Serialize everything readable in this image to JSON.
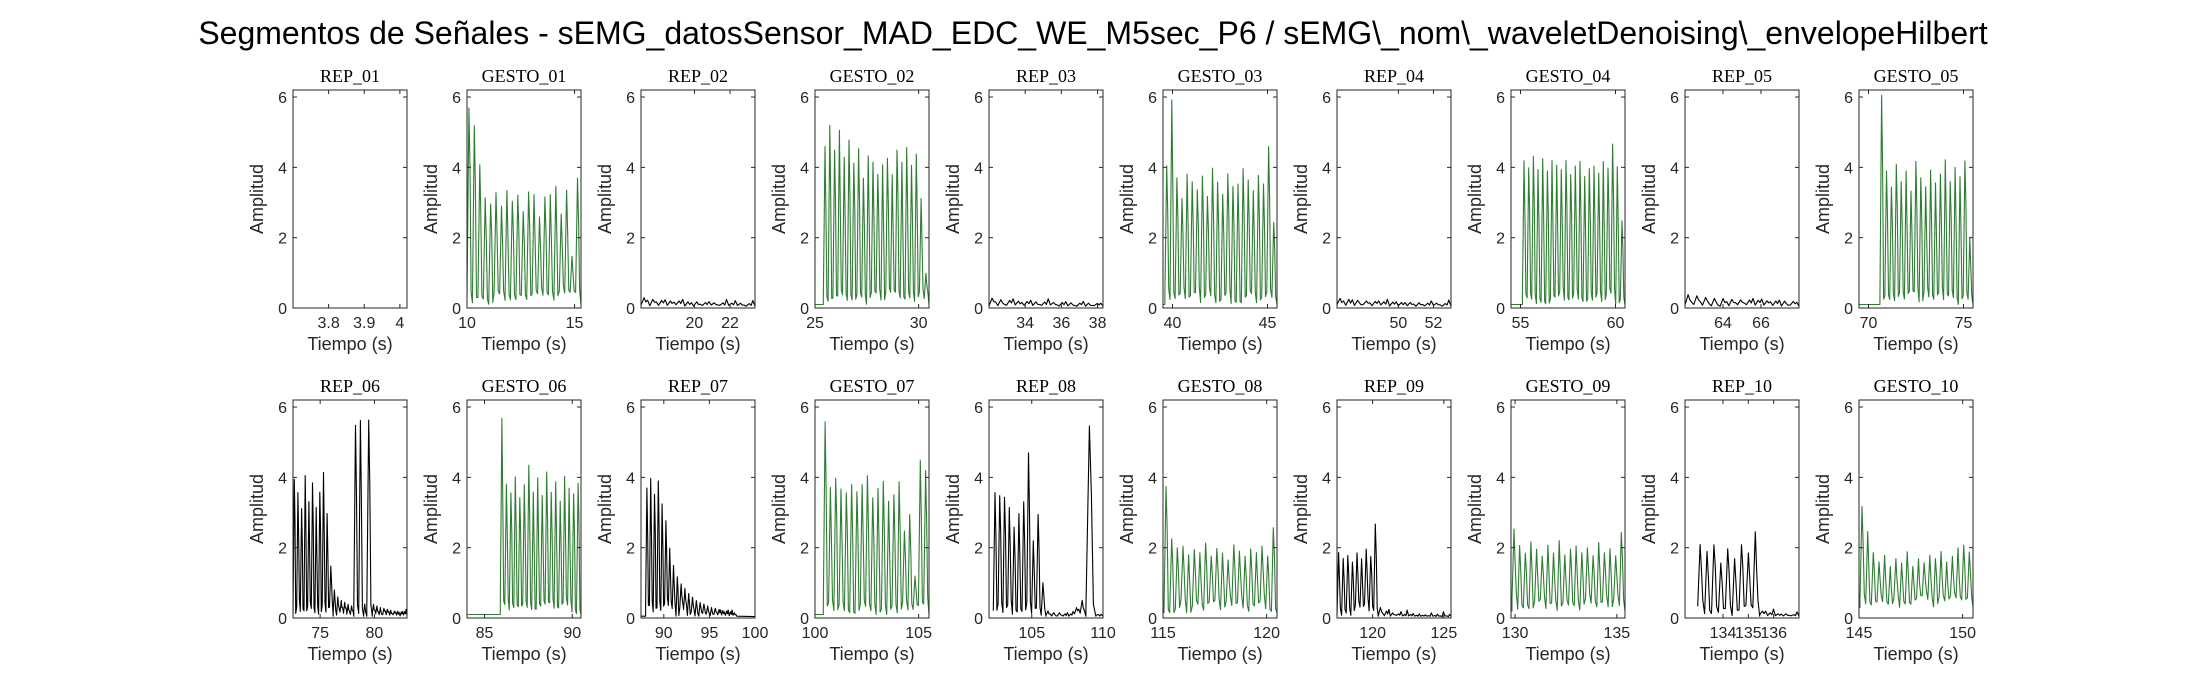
{
  "figure": {
    "title": "Segmentos de Señales - sEMG_datosSensor_MAD_EDC_WE_M5sec_P6 / sEMG\\_nom\\_waveletDenoising\\_envelopeHilbert",
    "xlabel": "Tiempo (s)",
    "ylabel": "Amplitud"
  },
  "colors": {
    "rep": "#000000",
    "gesto": "#2e7d32",
    "axis": "#262626"
  },
  "chart_data": [
    {
      "type": "line",
      "title": "REP_01",
      "color": "#000000",
      "xlim": [
        3.7,
        4.02
      ],
      "ylim": [
        0,
        6.2
      ],
      "xticks": [
        3.8,
        3.9,
        4
      ],
      "xtick_labels": [
        "3.8",
        "3.9",
        "4"
      ],
      "yticks": [
        0,
        2,
        4,
        6
      ],
      "series": [
        {
          "x": [],
          "y": []
        }
      ]
    },
    {
      "type": "line",
      "title": "GESTO_01",
      "color": "#2e7d32",
      "xlim": [
        10,
        15.3
      ],
      "ylim": [
        0,
        6.2
      ],
      "xticks": [
        10,
        15
      ],
      "xtick_labels": [
        "10",
        "15"
      ],
      "yticks": [
        0,
        2,
        4,
        6
      ],
      "pattern": {
        "shape": "burst",
        "start": 10,
        "end": 15.3,
        "base": 0.1,
        "peaks": [
          5.8,
          5.2,
          4.1,
          3.2,
          3.0,
          3.3,
          2.9,
          3.4,
          3.1,
          3.3,
          2.8,
          3.4,
          3.3,
          2.6,
          3.2,
          3.3,
          3.5,
          2.7,
          3.4,
          1.5,
          3.7
        ],
        "seed": 1
      }
    },
    {
      "type": "line",
      "title": "REP_02",
      "color": "#000000",
      "xlim": [
        17,
        23.4
      ],
      "ylim": [
        0,
        6.2
      ],
      "xticks": [
        20,
        22
      ],
      "xtick_labels": [
        "20",
        "22"
      ],
      "yticks": [
        0,
        2,
        4,
        6
      ],
      "pattern": {
        "shape": "ripple",
        "start": 17,
        "end": 23.4,
        "base": 0.05,
        "peaks": [
          0.3,
          0.25,
          0.22,
          0.2,
          0.2,
          0.18,
          0.18,
          0.16,
          0.15,
          0.15,
          0.14,
          0.14,
          0.13
        ],
        "seed": 2
      }
    },
    {
      "type": "line",
      "title": "GESTO_02",
      "color": "#2e7d32",
      "xlim": [
        25,
        30.5
      ],
      "ylim": [
        0,
        6.2
      ],
      "xticks": [
        25,
        30
      ],
      "xtick_labels": [
        "25",
        "30"
      ],
      "yticks": [
        0,
        2,
        4,
        6
      ],
      "pattern": {
        "shape": "burst",
        "start": 25.4,
        "end": 30.5,
        "base": 0.1,
        "peaks": [
          4.6,
          5.2,
          4.5,
          5.1,
          4.3,
          4.8,
          4.2,
          4.6,
          3.8,
          4.4,
          4.2,
          3.9,
          4.1,
          4.3,
          3.8,
          4.5,
          4.2,
          4.7,
          4.1,
          4.4,
          3.2,
          1.0
        ],
        "seed": 3
      }
    },
    {
      "type": "line",
      "title": "REP_03",
      "color": "#000000",
      "xlim": [
        32,
        38.3
      ],
      "ylim": [
        0,
        6.2
      ],
      "xticks": [
        34,
        36,
        38
      ],
      "xtick_labels": [
        "34",
        "36",
        "38"
      ],
      "yticks": [
        0,
        2,
        4,
        6
      ],
      "pattern": {
        "shape": "ripple",
        "start": 32,
        "end": 38.3,
        "base": 0.05,
        "peaks": [
          0.28,
          0.24,
          0.22,
          0.2,
          0.19,
          0.18,
          0.17,
          0.16,
          0.16,
          0.15,
          0.14,
          0.14,
          0.13
        ],
        "seed": 4
      }
    },
    {
      "type": "line",
      "title": "GESTO_03",
      "color": "#2e7d32",
      "xlim": [
        39.5,
        45.5
      ],
      "ylim": [
        0,
        6.2
      ],
      "xticks": [
        40,
        45
      ],
      "xtick_labels": [
        "40",
        "45"
      ],
      "yticks": [
        0,
        2,
        4,
        6
      ],
      "pattern": {
        "shape": "burst",
        "start": 39.6,
        "end": 45.5,
        "base": 0.1,
        "peaks": [
          4.1,
          6.1,
          3.8,
          3.2,
          3.9,
          3.6,
          3.4,
          3.8,
          3.2,
          4.0,
          3.6,
          3.3,
          3.9,
          3.5,
          3.6,
          4.0,
          3.7,
          3.4,
          3.8,
          3.6,
          4.7,
          2.5
        ],
        "seed": 5
      }
    },
    {
      "type": "line",
      "title": "REP_04",
      "color": "#000000",
      "xlim": [
        46.5,
        53
      ],
      "ylim": [
        0,
        6.2
      ],
      "xticks": [
        50,
        52
      ],
      "xtick_labels": [
        "50",
        "52"
      ],
      "yticks": [
        0,
        2,
        4,
        6
      ],
      "pattern": {
        "shape": "ripple",
        "start": 46.5,
        "end": 53,
        "base": 0.05,
        "peaks": [
          0.28,
          0.25,
          0.22,
          0.2,
          0.19,
          0.18,
          0.17,
          0.16,
          0.16,
          0.15,
          0.14,
          0.14,
          0.13
        ],
        "seed": 6
      }
    },
    {
      "type": "line",
      "title": "GESTO_04",
      "color": "#2e7d32",
      "xlim": [
        54.5,
        60.5
      ],
      "ylim": [
        0,
        6.2
      ],
      "xticks": [
        55,
        60
      ],
      "xtick_labels": [
        "55",
        "60"
      ],
      "yticks": [
        0,
        2,
        4,
        6
      ],
      "pattern": {
        "shape": "burst",
        "start": 55.1,
        "end": 60.5,
        "base": 0.1,
        "peaks": [
          4.3,
          4.1,
          4.4,
          4.0,
          4.3,
          3.9,
          4.2,
          4.1,
          4.0,
          4.3,
          3.9,
          4.1,
          4.2,
          3.8,
          4.0,
          4.1,
          3.9,
          4.2,
          4.0,
          4.7,
          4.1,
          2.5
        ],
        "seed": 7
      }
    },
    {
      "type": "line",
      "title": "REP_05",
      "color": "#000000",
      "xlim": [
        62,
        68
      ],
      "ylim": [
        0,
        6.2
      ],
      "xticks": [
        64,
        66
      ],
      "xtick_labels": [
        "64",
        "66"
      ],
      "yticks": [
        0,
        2,
        4,
        6
      ],
      "pattern": {
        "shape": "ripple",
        "start": 62,
        "end": 68,
        "base": 0.05,
        "peaks": [
          0.38,
          0.35,
          0.3,
          0.28,
          0.27,
          0.25,
          0.24,
          0.23,
          0.22,
          0.21,
          0.2,
          0.2,
          0.19
        ],
        "seed": 8
      }
    },
    {
      "type": "line",
      "title": "GESTO_05",
      "color": "#2e7d32",
      "xlim": [
        69.5,
        75.5
      ],
      "ylim": [
        0,
        6.2
      ],
      "xticks": [
        70,
        75
      ],
      "xtick_labels": [
        "70",
        "75"
      ],
      "yticks": [
        0,
        2,
        4,
        6
      ],
      "pattern": {
        "shape": "burst",
        "start": 70.6,
        "end": 75.5,
        "base": 0.1,
        "peaks": [
          6.1,
          4.0,
          3.5,
          4.1,
          3.6,
          3.9,
          3.4,
          4.2,
          3.8,
          3.5,
          4.0,
          3.6,
          3.9,
          4.3,
          3.7,
          4.1,
          3.8,
          4.3,
          2.0
        ],
        "seed": 9
      }
    },
    {
      "type": "line",
      "title": "REP_06",
      "color": "#000000",
      "xlim": [
        72.5,
        83
      ],
      "ylim": [
        0,
        6.2
      ],
      "xticks": [
        75,
        80
      ],
      "xtick_labels": [
        "75",
        "80"
      ],
      "yticks": [
        0,
        2,
        4,
        6
      ],
      "pattern": {
        "shape": "custom",
        "start": 72.5,
        "end": 83,
        "segments": [
          {
            "from": 72.5,
            "to": 76.2,
            "peaks": [
              4.0,
              3.6,
              3.2,
              4.1,
              3.4,
              3.9,
              3.2,
              3.6,
              4.2,
              3.0,
              1.5
            ]
          },
          {
            "from": 76.2,
            "to": 78.1,
            "peaks": [
              0.8,
              0.6,
              0.5,
              0.45,
              0.4,
              0.35
            ]
          },
          {
            "from": 78.1,
            "to": 79.0,
            "peaks": [
              5.6,
              5.7
            ]
          },
          {
            "from": 79.0,
            "to": 79.3,
            "peaks": [
              0.4
            ]
          },
          {
            "from": 79.3,
            "to": 79.8,
            "peaks": [
              5.8
            ]
          },
          {
            "from": 79.8,
            "to": 83,
            "peaks": [
              0.4,
              0.35,
              0.3,
              0.28,
              0.25,
              0.22,
              0.2,
              0.2,
              0.18,
              0.18
            ]
          }
        ],
        "seed": 10
      }
    },
    {
      "type": "line",
      "title": "GESTO_06",
      "color": "#2e7d32",
      "xlim": [
        84,
        90.5
      ],
      "ylim": [
        0,
        6.2
      ],
      "xticks": [
        85,
        90
      ],
      "xtick_labels": [
        "85",
        "90"
      ],
      "yticks": [
        0,
        2,
        4,
        6
      ],
      "pattern": {
        "shape": "burst",
        "start": 85.9,
        "end": 90.5,
        "base": 0.1,
        "peaks": [
          5.8,
          3.9,
          3.6,
          4.1,
          3.5,
          3.9,
          4.4,
          3.6,
          4.0,
          3.5,
          4.2,
          3.6,
          3.9,
          3.4,
          4.1,
          3.7,
          3.6,
          3.9
        ],
        "seed": 11
      }
    },
    {
      "type": "line",
      "title": "REP_07",
      "color": "#000000",
      "xlim": [
        87.5,
        100
      ],
      "ylim": [
        0,
        6.2
      ],
      "xticks": [
        90,
        95,
        100
      ],
      "xtick_labels": [
        "90",
        "95",
        "100"
      ],
      "yticks": [
        0,
        2,
        4,
        6
      ],
      "pattern": {
        "shape": "decay",
        "start": 88.0,
        "end": 98.0,
        "base": 0.05,
        "peaks": [
          3.8,
          4.0,
          3.6,
          3.9,
          3.3,
          2.8,
          2.0,
          1.5,
          1.2,
          1.0,
          0.85,
          0.7,
          0.6,
          0.5,
          0.45,
          0.4,
          0.35,
          0.3,
          0.28,
          0.25,
          0.22,
          0.2,
          0.18,
          0.15
        ],
        "seed": 12
      }
    },
    {
      "type": "line",
      "title": "GESTO_07",
      "color": "#2e7d32",
      "xlim": [
        100,
        105.5
      ],
      "ylim": [
        0,
        6.2
      ],
      "xticks": [
        100,
        105
      ],
      "xtick_labels": [
        "100",
        "105"
      ],
      "yticks": [
        0,
        2,
        4,
        6
      ],
      "pattern": {
        "shape": "burst",
        "start": 100.4,
        "end": 105.5,
        "base": 0.1,
        "peaks": [
          5.6,
          3.8,
          4.0,
          3.7,
          3.6,
          3.9,
          3.6,
          3.8,
          4.1,
          3.5,
          3.7,
          3.9,
          3.4,
          3.6,
          3.9,
          2.5,
          3.0,
          1.2,
          4.6,
          4.3
        ],
        "seed": 13
      }
    },
    {
      "type": "line",
      "title": "REP_08",
      "color": "#000000",
      "xlim": [
        102,
        110
      ],
      "ylim": [
        0,
        6.2
      ],
      "xticks": [
        105,
        110
      ],
      "xtick_labels": [
        "105",
        "110"
      ],
      "yticks": [
        0,
        2,
        4,
        6
      ],
      "pattern": {
        "shape": "custom",
        "start": 102,
        "end": 110,
        "segments": [
          {
            "from": 102.3,
            "to": 106.0,
            "peaks": [
              3.6,
              3.5,
              3.5,
              3.2,
              2.6,
              3.0,
              3.4,
              4.7,
              2.2,
              3.0,
              1.0
            ]
          },
          {
            "from": 106.0,
            "to": 108.8,
            "peaks": [
              0.2,
              0.15,
              0.15,
              0.12,
              0.12,
              0.3,
              0.5
            ]
          },
          {
            "from": 108.8,
            "to": 109.5,
            "peaks": [
              5.5
            ]
          },
          {
            "from": 109.5,
            "to": 110,
            "peaks": [
              0.1
            ]
          }
        ],
        "seed": 14
      }
    },
    {
      "type": "line",
      "title": "GESTO_08",
      "color": "#2e7d32",
      "xlim": [
        115,
        120.5
      ],
      "ylim": [
        0,
        6.2
      ],
      "xticks": [
        115,
        120
      ],
      "xtick_labels": [
        "115",
        "120"
      ],
      "yticks": [
        0,
        2,
        4,
        6
      ],
      "pattern": {
        "shape": "burst",
        "start": 115.05,
        "end": 120.5,
        "base": 0.15,
        "peaks": [
          3.8,
          2.3,
          2.0,
          2.1,
          1.8,
          2.0,
          1.9,
          2.2,
          1.8,
          2.0,
          1.9,
          1.7,
          2.1,
          1.9,
          1.8,
          2.0,
          1.9,
          2.1,
          1.8,
          2.6
        ],
        "seed": 15
      }
    },
    {
      "type": "line",
      "title": "REP_09",
      "color": "#000000",
      "xlim": [
        117.5,
        125.5
      ],
      "ylim": [
        0,
        6.2
      ],
      "xticks": [
        120,
        125
      ],
      "xtick_labels": [
        "120",
        "125"
      ],
      "yticks": [
        0,
        2,
        4,
        6
      ],
      "pattern": {
        "shape": "custom",
        "start": 117.5,
        "end": 125.5,
        "segments": [
          {
            "from": 117.5,
            "to": 120.4,
            "peaks": [
              1.9,
              1.7,
              1.8,
              1.6,
              1.9,
              1.7,
              2.0,
              1.8,
              2.7
            ]
          },
          {
            "from": 120.4,
            "to": 125.5,
            "peaks": [
              0.3,
              0.2,
              0.15,
              0.12,
              0.1,
              0.1,
              0.08,
              0.08,
              0.07,
              0.07,
              0.06,
              0.06
            ]
          }
        ],
        "seed": 16
      }
    },
    {
      "type": "line",
      "title": "GESTO_09",
      "color": "#2e7d32",
      "xlim": [
        129.8,
        135.4
      ],
      "ylim": [
        0,
        6.2
      ],
      "xticks": [
        130,
        135
      ],
      "xtick_labels": [
        "130",
        "135"
      ],
      "yticks": [
        0,
        2,
        4,
        6
      ],
      "pattern": {
        "shape": "burst",
        "start": 129.85,
        "end": 135.4,
        "base": 0.2,
        "peaks": [
          2.6,
          2.1,
          1.9,
          2.2,
          2.0,
          1.8,
          2.1,
          1.9,
          2.2,
          1.8,
          2.0,
          2.1,
          1.9,
          2.0,
          1.8,
          2.2,
          1.9,
          2.0,
          1.8,
          2.5
        ],
        "seed": 17
      }
    },
    {
      "type": "line",
      "title": "REP_10",
      "color": "#000000",
      "xlim": [
        132.5,
        137
      ],
      "ylim": [
        0,
        6.2
      ],
      "xticks": [
        134,
        135,
        136
      ],
      "xtick_labels": [
        "134",
        "135",
        "136"
      ],
      "yticks": [
        0,
        2,
        4,
        6
      ],
      "pattern": {
        "shape": "custom",
        "start": 132.5,
        "end": 137,
        "segments": [
          {
            "from": 133.0,
            "to": 135.45,
            "peaks": [
              2.1,
              1.9,
              2.1,
              1.6,
              2.0,
              1.7,
              2.1,
              1.9,
              2.5
            ]
          },
          {
            "from": 135.45,
            "to": 137,
            "peaks": [
              0.2,
              0.15,
              0.12,
              0.12,
              0.1
            ]
          }
        ],
        "seed": 18
      }
    },
    {
      "type": "line",
      "title": "GESTO_10",
      "color": "#2e7d32",
      "xlim": [
        145,
        150.5
      ],
      "ylim": [
        0,
        6.2
      ],
      "xticks": [
        145,
        150
      ],
      "xtick_labels": [
        "145",
        "150"
      ],
      "yticks": [
        0,
        2,
        4,
        6
      ],
      "pattern": {
        "shape": "burst",
        "start": 145.05,
        "end": 150.5,
        "base": 0.3,
        "peaks": [
          3.2,
          2.5,
          1.9,
          1.6,
          1.8,
          1.5,
          1.7,
          1.6,
          1.9,
          1.5,
          1.7,
          1.6,
          1.8,
          1.7,
          1.9,
          1.6,
          1.8,
          2.0,
          2.1,
          1.9
        ],
        "seed": 19
      }
    }
  ]
}
